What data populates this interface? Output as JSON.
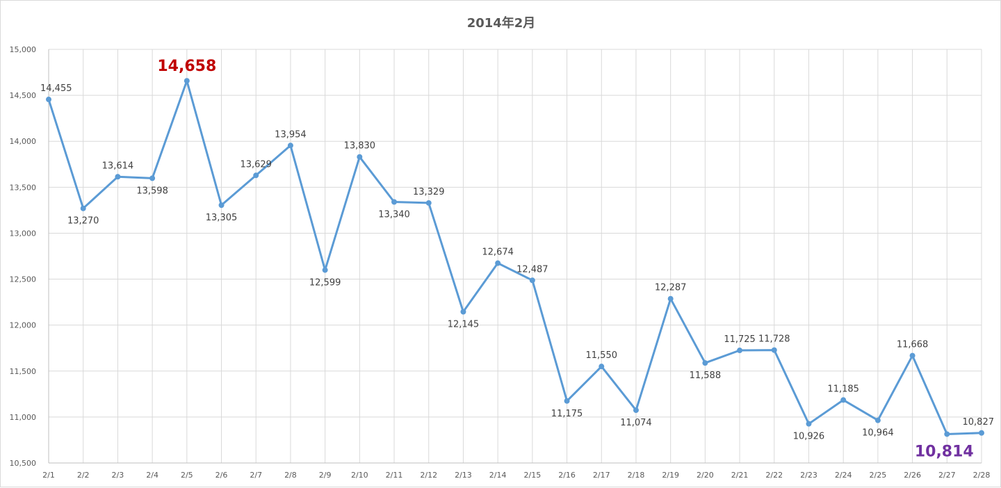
{
  "chart_data": {
    "type": "line",
    "title": "2014年2月",
    "xlabel": "",
    "ylabel": "",
    "categories": [
      "2/1",
      "2/2",
      "2/3",
      "2/4",
      "2/5",
      "2/6",
      "2/7",
      "2/8",
      "2/9",
      "2/10",
      "2/11",
      "2/12",
      "2/13",
      "2/14",
      "2/15",
      "2/16",
      "2/17",
      "2/18",
      "2/19",
      "2/20",
      "2/21",
      "2/22",
      "2/23",
      "2/24",
      "2/25",
      "2/26",
      "2/27",
      "2/28"
    ],
    "values": [
      14455,
      13270,
      13614,
      13598,
      14658,
      13305,
      13629,
      13954,
      12599,
      13830,
      13340,
      13329,
      12145,
      12674,
      12487,
      11175,
      11550,
      11074,
      12287,
      11588,
      11725,
      11728,
      10926,
      11185,
      10964,
      11668,
      10814,
      10827
    ],
    "data_labels": [
      "14,455",
      "13,270",
      "13,614",
      "13,598",
      "14,658",
      "13,305",
      "13,629",
      "13,954",
      "12,599",
      "13,830",
      "13,340",
      "13,329",
      "12,145",
      "12,674",
      "12,487",
      "11,175",
      "11,550",
      "11,074",
      "12,287",
      "11,588",
      "11,725",
      "11,728",
      "10,926",
      "11,185",
      "10,964",
      "11,668",
      "10,814",
      "10,827"
    ],
    "label_position": [
      "above",
      "below",
      "above",
      "below",
      "above",
      "below",
      "above",
      "above",
      "below",
      "above",
      "below",
      "above",
      "below",
      "above",
      "above",
      "below",
      "above",
      "below",
      "above",
      "below",
      "above",
      "above",
      "below",
      "above",
      "below",
      "above",
      "below",
      "above"
    ],
    "ylim": [
      10500,
      15000
    ],
    "yticks": [
      10500,
      11000,
      11500,
      12000,
      12500,
      13000,
      13500,
      14000,
      14500,
      15000
    ],
    "ytick_labels": [
      "10,500",
      "11,000",
      "11,500",
      "12,000",
      "12,500",
      "13,000",
      "13,500",
      "14,000",
      "14,500",
      "15,000"
    ],
    "grid": true,
    "legend": "none",
    "line_color": "#5b9bd5",
    "highlight_max": {
      "index": 4,
      "label": "14,658",
      "color": "#c00000"
    },
    "highlight_min": {
      "index": 26,
      "label": "10,814",
      "color": "#7030a0"
    }
  }
}
